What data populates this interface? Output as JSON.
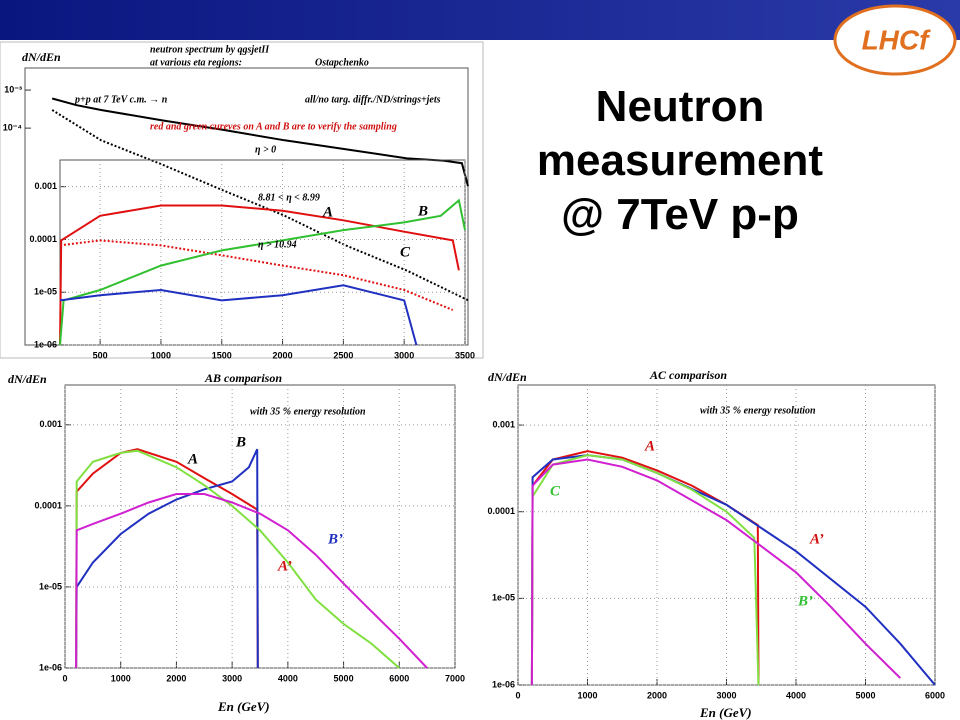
{
  "slide_title": [
    "Neutron",
    "measurement",
    "@ 7TeV p-p"
  ],
  "logo": "LHCf",
  "chart_data": [
    {
      "type": "line",
      "log_y": true,
      "grid": false,
      "ylabel": "dN/dEn",
      "xlim": [
        0,
        3500
      ],
      "ylim": [
        2e-10,
        0.0038
      ],
      "yticks": [
        {
          "value": 0.001,
          "label": "10⁻³"
        },
        {
          "value": 0.0001,
          "label": "10⁻⁴"
        }
      ],
      "annotations": [
        {
          "text": "neutron spectrum by qgsjetII",
          "color": "#000"
        },
        {
          "text": "at various eta regions:",
          "color": "#000"
        },
        {
          "text": "Ostapchenko",
          "color": "#000"
        },
        {
          "text": "p+p at 7 TeV c.m. → n",
          "color": "#000"
        },
        {
          "text": "all/no targ. diffr./ND/strings+jets",
          "color": "#000"
        },
        {
          "text": "red and green cureves on A and B are to verify the sampling",
          "color": "#d01010"
        },
        {
          "text": "η > 0",
          "color": "#000"
        }
      ],
      "series": [
        {
          "color": "#000000",
          "dash": false,
          "x": [
            100,
            300,
            500,
            1000,
            1500,
            2000,
            2500,
            3000,
            3300,
            3450,
            3500
          ],
          "values": [
            0.0006,
            0.0004,
            0.0003,
            0.00016,
            9e-05,
            4.8e-05,
            2.8e-05,
            1.6e-05,
            1.4e-05,
            1.2e-05,
            3e-06
          ]
        },
        {
          "color": "#000000",
          "dash": true,
          "x": [
            100,
            500,
            1000,
            1500,
            2000,
            2500,
            3000,
            3500
          ],
          "values": [
            0.0003,
            4.8e-05,
            1.1e-05,
            2.3e-06,
            5e-07,
            8.3e-08,
            1.8e-08,
            3e-09
          ]
        }
      ]
    },
    {
      "type": "line",
      "log_y": true,
      "grid": true,
      "xlim": [
        170,
        3500
      ],
      "ylim": [
        1e-06,
        0.0032
      ],
      "xticks": [
        500,
        1000,
        1500,
        2000,
        2500,
        3000,
        3500
      ],
      "yticks": [
        {
          "value": 1e-06,
          "label": "1e-06"
        },
        {
          "value": 1e-05,
          "label": "1e-05"
        },
        0.0001,
        0.001
      ],
      "annotations": [
        {
          "text": "8.81 < η < 8.99",
          "color": "#000"
        },
        {
          "text": "η > 10.94",
          "color": "#000"
        },
        {
          "text": "A",
          "color": "#000"
        },
        {
          "text": "B",
          "color": "#000"
        },
        {
          "text": "C",
          "color": "#000"
        }
      ],
      "series": [
        {
          "color": "#e01010",
          "dash": false,
          "x": [
            170,
            180,
            500,
            1000,
            1500,
            2000,
            2500,
            3000,
            3400,
            3450
          ],
          "values": [
            1e-06,
            9.6e-05,
            0.00028,
            0.00044,
            0.00044,
            0.00035,
            0.00023,
            0.00014,
            9.6e-05,
            2.6e-05
          ]
        },
        {
          "color": "#e01010",
          "dash": true,
          "x": [
            170,
            500,
            1000,
            1500,
            2000,
            2500,
            3000,
            3400
          ],
          "values": [
            7.7e-05,
            9.6e-05,
            7.7e-05,
            5e-05,
            3.2e-05,
            2.1e-05,
            1.1e-05,
            4.6e-06
          ]
        },
        {
          "color": "#30c030",
          "dash": false,
          "x": [
            170,
            200,
            500,
            1000,
            1500,
            2000,
            2500,
            3000,
            3300,
            3450,
            3500
          ],
          "values": [
            1e-06,
            7e-06,
            1.1e-05,
            3.2e-05,
            6.2e-05,
            9.6e-05,
            0.00015,
            0.00021,
            0.00028,
            0.00055,
            0.00015
          ]
        },
        {
          "color": "#2030c0",
          "dash": false,
          "x": [
            170,
            500,
            1000,
            1500,
            2000,
            2500,
            3000,
            3100
          ],
          "values": [
            7e-06,
            8.8e-06,
            1.1e-05,
            7e-06,
            8.8e-06,
            1.35e-05,
            7e-06,
            1e-06
          ]
        }
      ]
    },
    {
      "type": "line",
      "log_y": true,
      "grid": true,
      "title": "AB comparison",
      "ylabel": "dN/dEn",
      "xlabel": "En (GeV)",
      "xlim": [
        0,
        7000
      ],
      "ylim": [
        1e-06,
        0.0031
      ],
      "xticks": [
        0,
        1000,
        2000,
        3000,
        4000,
        5000,
        6000,
        7000
      ],
      "yticks": [
        {
          "value": 1e-06,
          "label": "1e-06"
        },
        {
          "value": 1e-05,
          "label": "1e-05"
        },
        0.0001,
        0.001
      ],
      "annotations": [
        {
          "text": "with 35 % energy resolution",
          "color": "#000"
        },
        {
          "text": "A",
          "color": "#000"
        },
        {
          "text": "B",
          "color": "#000"
        },
        {
          "text": "B’",
          "color": "#2030c0"
        },
        {
          "text": "A’",
          "color": "#d01010"
        }
      ],
      "series": [
        {
          "color": "#e01010",
          "dash": false,
          "x": [
            200,
            210,
            500,
            1000,
            1300,
            2000,
            2500,
            3000,
            3450,
            3460
          ],
          "values": [
            1e-06,
            0.00015,
            0.00025,
            0.00045,
            0.0005,
            0.00035,
            0.00022,
            0.00014,
            9e-05,
            1e-06
          ]
        },
        {
          "color": "#2030c0",
          "dash": false,
          "x": [
            200,
            210,
            500,
            1000,
            1500,
            2000,
            2500,
            3000,
            3300,
            3450,
            3460
          ],
          "values": [
            1e-06,
            1e-05,
            2e-05,
            4.5e-05,
            8e-05,
            0.00012,
            0.00016,
            0.0002,
            0.0003,
            0.0005,
            1e-06
          ]
        },
        {
          "color": "#80e040",
          "dash": false,
          "x": [
            200,
            210,
            500,
            1000,
            1300,
            2000,
            2500,
            3000,
            3500,
            4000,
            4500,
            5000,
            5500,
            6000
          ],
          "values": [
            1e-06,
            0.0002,
            0.00035,
            0.00045,
            0.00048,
            0.0003,
            0.00018,
            0.0001,
            5e-05,
            2e-05,
            7e-06,
            3.5e-06,
            2e-06,
            1e-06
          ]
        },
        {
          "color": "#d020d0",
          "dash": false,
          "x": [
            200,
            210,
            500,
            1000,
            1500,
            2000,
            2500,
            3000,
            3500,
            4000,
            4500,
            5000,
            5500,
            6000,
            6500
          ],
          "values": [
            1e-06,
            5e-05,
            6e-05,
            8e-05,
            0.00011,
            0.00014,
            0.00014,
            0.00011,
            8e-05,
            5e-05,
            2.5e-05,
            1.1e-05,
            5e-06,
            2.3e-06,
            1e-06
          ]
        }
      ]
    },
    {
      "type": "line",
      "log_y": true,
      "grid": true,
      "title": "AC comparison",
      "ylabel": "dN/dEn",
      "xlabel": "En (GeV)",
      "xlim": [
        0,
        6000
      ],
      "ylim": [
        1e-06,
        0.0029
      ],
      "xticks": [
        0,
        1000,
        2000,
        3000,
        4000,
        5000,
        6000
      ],
      "yticks": [
        {
          "value": 1e-06,
          "label": "1e-06"
        },
        {
          "value": 1e-05,
          "label": "1e-05"
        },
        0.0001,
        0.001
      ],
      "annotations": [
        {
          "text": "with 35 % energy resolution",
          "color": "#000"
        },
        {
          "text": "A",
          "color": "#d01010"
        },
        {
          "text": "A’",
          "color": "#d01010"
        },
        {
          "text": "C",
          "color": "#30c030"
        },
        {
          "text": "B’",
          "color": "#30c030"
        }
      ],
      "series": [
        {
          "color": "#e01010",
          "dash": false,
          "x": [
            200,
            210,
            500,
            1000,
            1500,
            2000,
            2500,
            3000,
            3450,
            3460
          ],
          "values": [
            1e-06,
            0.0002,
            0.0004,
            0.0005,
            0.00042,
            0.0003,
            0.0002,
            0.00012,
            7e-05,
            1e-06
          ]
        },
        {
          "color": "#2030c0",
          "dash": false,
          "x": [
            200,
            210,
            500,
            1000,
            1500,
            2000,
            3000,
            4000,
            5000,
            5500,
            6000
          ],
          "values": [
            1e-06,
            0.00025,
            0.0004,
            0.00045,
            0.0004,
            0.00028,
            0.00012,
            3.5e-05,
            8e-06,
            3e-06,
            1e-06
          ]
        },
        {
          "color": "#80e040",
          "dash": false,
          "x": [
            200,
            210,
            500,
            1000,
            1500,
            2000,
            2500,
            3000,
            3400,
            3460
          ],
          "values": [
            1e-06,
            0.00015,
            0.00035,
            0.00045,
            0.0004,
            0.00028,
            0.00018,
            0.0001,
            5e-05,
            1e-06
          ]
        },
        {
          "color": "#d020d0",
          "dash": false,
          "x": [
            200,
            210,
            500,
            1000,
            1500,
            2000,
            3000,
            4000,
            4500,
            5000,
            5500
          ],
          "values": [
            1e-06,
            0.0002,
            0.00035,
            0.0004,
            0.00033,
            0.00023,
            8e-05,
            2e-05,
            8e-06,
            3e-06,
            1.2e-06
          ]
        }
      ]
    }
  ]
}
